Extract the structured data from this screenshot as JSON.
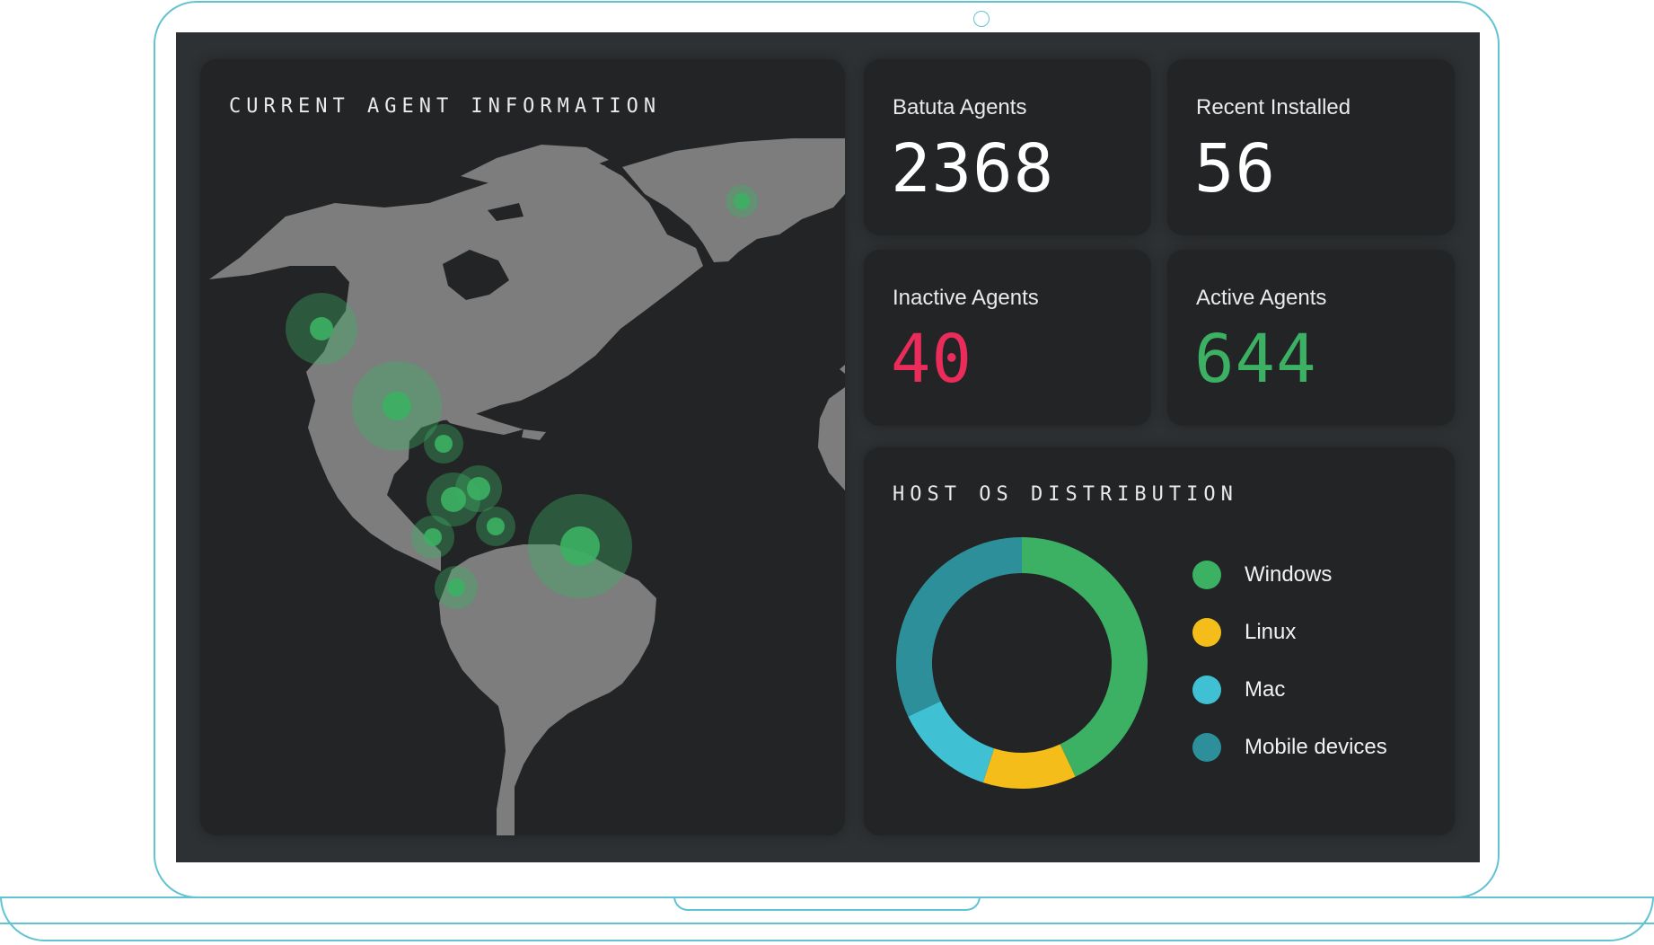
{
  "dashboard": {
    "map_title": "CURRENT AGENT INFORMATION",
    "os_title": "HOST OS DISTRIBUTION"
  },
  "stats": [
    {
      "label": "Batuta Agents",
      "value": "2368",
      "color": "#ffffff"
    },
    {
      "label": "Recent Installed",
      "value": "56",
      "color": "#ffffff"
    },
    {
      "label": "Inactive Agents",
      "value": "40",
      "color": "#ea2c5a"
    },
    {
      "label": "Active Agents",
      "value": "644",
      "color": "#3cb063"
    }
  ],
  "os_distribution": {
    "items": [
      {
        "label": "Windows",
        "share": 0.43,
        "color": "#3cb063"
      },
      {
        "label": "Linux",
        "share": 0.12,
        "color": "#f5bd19"
      },
      {
        "label": "Mac",
        "share": 0.13,
        "color": "#3fc1d3"
      },
      {
        "label": "Mobile devices",
        "share": 0.32,
        "color": "#2d8f9a"
      }
    ]
  },
  "colors": {
    "background": "#2e3133",
    "card": "#222426",
    "land": "#7d7d7d",
    "agent_marker": "#3cb063",
    "laptop_outline": "#62c3d3"
  },
  "icons": {
    "agent_marker": "map-marker-icon"
  }
}
